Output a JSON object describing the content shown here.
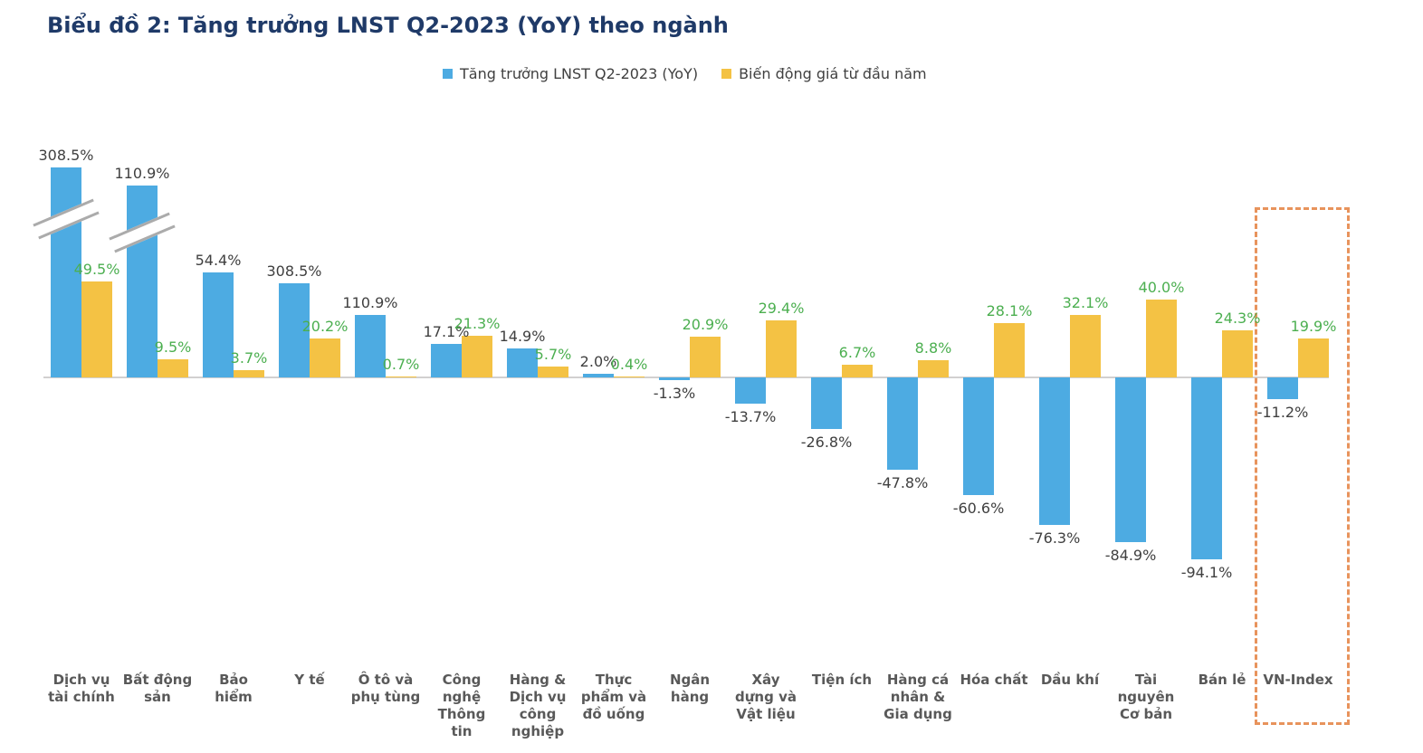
{
  "page": {
    "title": "Biểu đồ 2: Tăng trưởng LNST Q2-2023 (YoY) theo ngành"
  },
  "legend": {
    "series1": "Tăng trưởng LNST Q2-2023 (YoY)",
    "series2": "Biến động giá từ đầu năm"
  },
  "colors": {
    "blue": "#4DABE2",
    "yellow": "#F4C244",
    "green_label": "#4CAF50",
    "dark_label": "#404040",
    "title_navy": "#1F3A68",
    "axis_label": "#595959",
    "axis_line": "#D2D0D0",
    "break_edge": "#ABABAB",
    "highlight_box": "#E8935C"
  },
  "chart_data": {
    "type": "bar",
    "title": "Biểu đồ 2: Tăng trưởng LNST Q2-2023 (YoY) theo ngành",
    "xlabel": "",
    "ylabel": "",
    "ylim": [
      -100,
      115
    ],
    "grid": false,
    "legend_position": "top",
    "categories": [
      "Dịch vụ tài chính",
      "Bất động sản",
      "Bảo hiểm",
      "Y tế",
      "Ô tô và phụ tùng",
      "Công nghệ Thông tin",
      "Hàng & Dịch vụ công nghiệp",
      "Thực phẩm và đồ uống",
      "Ngân hàng",
      "Xây dựng và Vật liệu",
      "Tiện ích",
      "Hàng cá nhân & Gia dụng",
      "Hóa chất",
      "Dầu khí",
      "Tài nguyên Cơ bản",
      "Bán lẻ",
      "VN-Index"
    ],
    "tick_labels": [
      "Dịch vụ\ntài chính",
      "Bất động\nsản",
      "Bảo\nhiểm",
      "Y tế",
      "Ô tô và\nphụ tùng",
      "Công\nnghệ\nThông\ntin",
      "Hàng &\nDịch vụ\ncông\nnghiệp",
      "Thực\nphẩm và\nđồ uống",
      "Ngân\nhàng",
      "Xây\ndựng và\nVật liệu",
      "Tiện ích",
      "Hàng cá\nnhân &\nGia dụng",
      "Hóa chất",
      "Dầu khí",
      "Tài\nnguyên\nCơ bản",
      "Bán lẻ",
      "VN-Index"
    ],
    "series": [
      {
        "name": "Tăng trưởng LNST Q2-2023 (YoY)",
        "color_key": "blue",
        "values": [
          308.5,
          110.9,
          54.4,
          308.5,
          110.9,
          17.1,
          14.9,
          2.0,
          -1.3,
          -13.7,
          -26.8,
          -47.8,
          -60.6,
          -76.3,
          -84.9,
          -94.1,
          -11.2
        ],
        "labels": [
          "308.5%",
          "110.9%",
          "54.4%",
          "308.5%",
          "110.9%",
          "17.1%",
          "14.9%",
          "2.0%",
          "-1.3%",
          "-13.7%",
          "-26.8%",
          "-47.8%",
          "-60.6%",
          "-76.3%",
          "-84.9%",
          "-94.1%",
          "-11.2%"
        ],
        "drawn_pct": [
          108.4,
          99.0,
          54.4,
          48.6,
          32.2,
          17.1,
          14.9,
          2.0,
          -1.3,
          -13.7,
          -26.8,
          -47.8,
          -60.6,
          -76.3,
          -84.9,
          -94.1,
          -11.2
        ]
      },
      {
        "name": "Biến động giá từ đầu năm",
        "color_key": "yellow",
        "values": [
          49.5,
          9.5,
          3.7,
          20.2,
          0.7,
          21.3,
          5.7,
          0.4,
          20.9,
          29.4,
          6.7,
          8.8,
          28.1,
          32.1,
          40.0,
          24.3,
          19.9
        ],
        "labels": [
          "49.5%",
          "9.5%",
          "3.7%",
          "20.2%",
          "0.7%",
          "21.3%",
          "5.7%",
          "0.4%",
          "20.9%",
          "29.4%",
          "6.7%",
          "8.8%",
          "28.1%",
          "32.1%",
          "40.0%",
          "24.3%",
          "19.9%"
        ],
        "drawn_pct": [
          49.5,
          9.5,
          3.7,
          20.2,
          0.7,
          21.3,
          5.7,
          0.4,
          20.9,
          29.4,
          6.7,
          8.8,
          28.1,
          32.1,
          40.0,
          24.3,
          19.9
        ]
      }
    ],
    "axis_break_category_indices": [
      0,
      1
    ],
    "highlight_category_index": 16
  }
}
